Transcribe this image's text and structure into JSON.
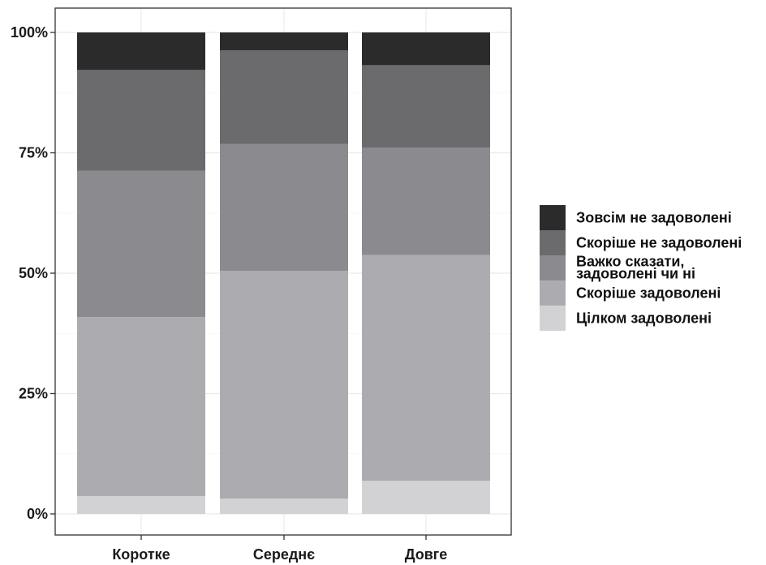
{
  "chart_data": {
    "type": "bar",
    "stacked": true,
    "percent": true,
    "categories": [
      "Коротке",
      "Середнє",
      "Довге"
    ],
    "y_tick_labels": [
      "0%",
      "25%",
      "50%",
      "75%",
      "100%"
    ],
    "ylim": [
      0,
      100
    ],
    "grid": true,
    "legend_position": "right",
    "series": [
      {
        "name": "Цілком задоволені",
        "values": [
          3.7,
          3.2,
          6.9
        ],
        "color": "#d2d2d4"
      },
      {
        "name": "Скоріше задоволені",
        "values": [
          37.2,
          47.3,
          46.9
        ],
        "color": "#acacb0"
      },
      {
        "name": "Важко сказати, задоволені чи ні",
        "values": [
          30.4,
          26.3,
          22.3
        ],
        "color": "#8b8b8f"
      },
      {
        "name": "Скоріше не задоволені",
        "values": [
          20.9,
          19.5,
          17.1
        ],
        "color": "#6b6b6d"
      },
      {
        "name": "Зовсім не задоволені",
        "values": [
          7.8,
          3.7,
          6.8
        ],
        "color": "#2b2b2b"
      }
    ],
    "legend_order": [
      {
        "label": [
          "Зовсім не задоволені"
        ],
        "color": "#2b2b2b"
      },
      {
        "label": [
          "Скоріше не задоволені"
        ],
        "color": "#6b6b6d"
      },
      {
        "label": [
          "Важко сказати,",
          "задоволені чи ні"
        ],
        "color": "#8b8b8f"
      },
      {
        "label": [
          "Скоріше задоволені"
        ],
        "color": "#acacb0"
      },
      {
        "label": [
          "Цілком задоволені"
        ],
        "color": "#d2d2d4"
      }
    ]
  }
}
